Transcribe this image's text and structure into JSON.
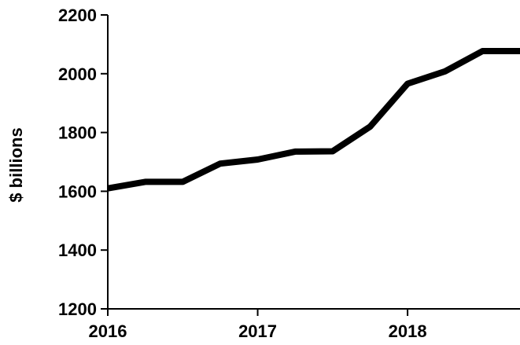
{
  "chart_data": {
    "type": "line",
    "title": "",
    "xlabel": "",
    "ylabel": "$ billions",
    "ylim": [
      1200,
      2200
    ],
    "yticks": [
      1200,
      1400,
      1600,
      1800,
      2000,
      2200
    ],
    "xlim": [
      2016,
      2018.75
    ],
    "xticks": [
      2016,
      2017,
      2018
    ],
    "xtick_labels": [
      "2016",
      "2017",
      "2018"
    ],
    "grid": false,
    "legend": "none",
    "series": [
      {
        "color": "#000000",
        "x": [
          2016.0,
          2016.25,
          2016.5,
          2016.75,
          2017.0,
          2017.25,
          2017.5,
          2017.75,
          2018.0,
          2018.25,
          2018.5,
          2018.75
        ],
        "y": [
          1610,
          1632,
          1632,
          1694,
          1708,
          1735,
          1736,
          1820,
          1966,
          2008,
          2077,
          2077
        ]
      }
    ]
  }
}
